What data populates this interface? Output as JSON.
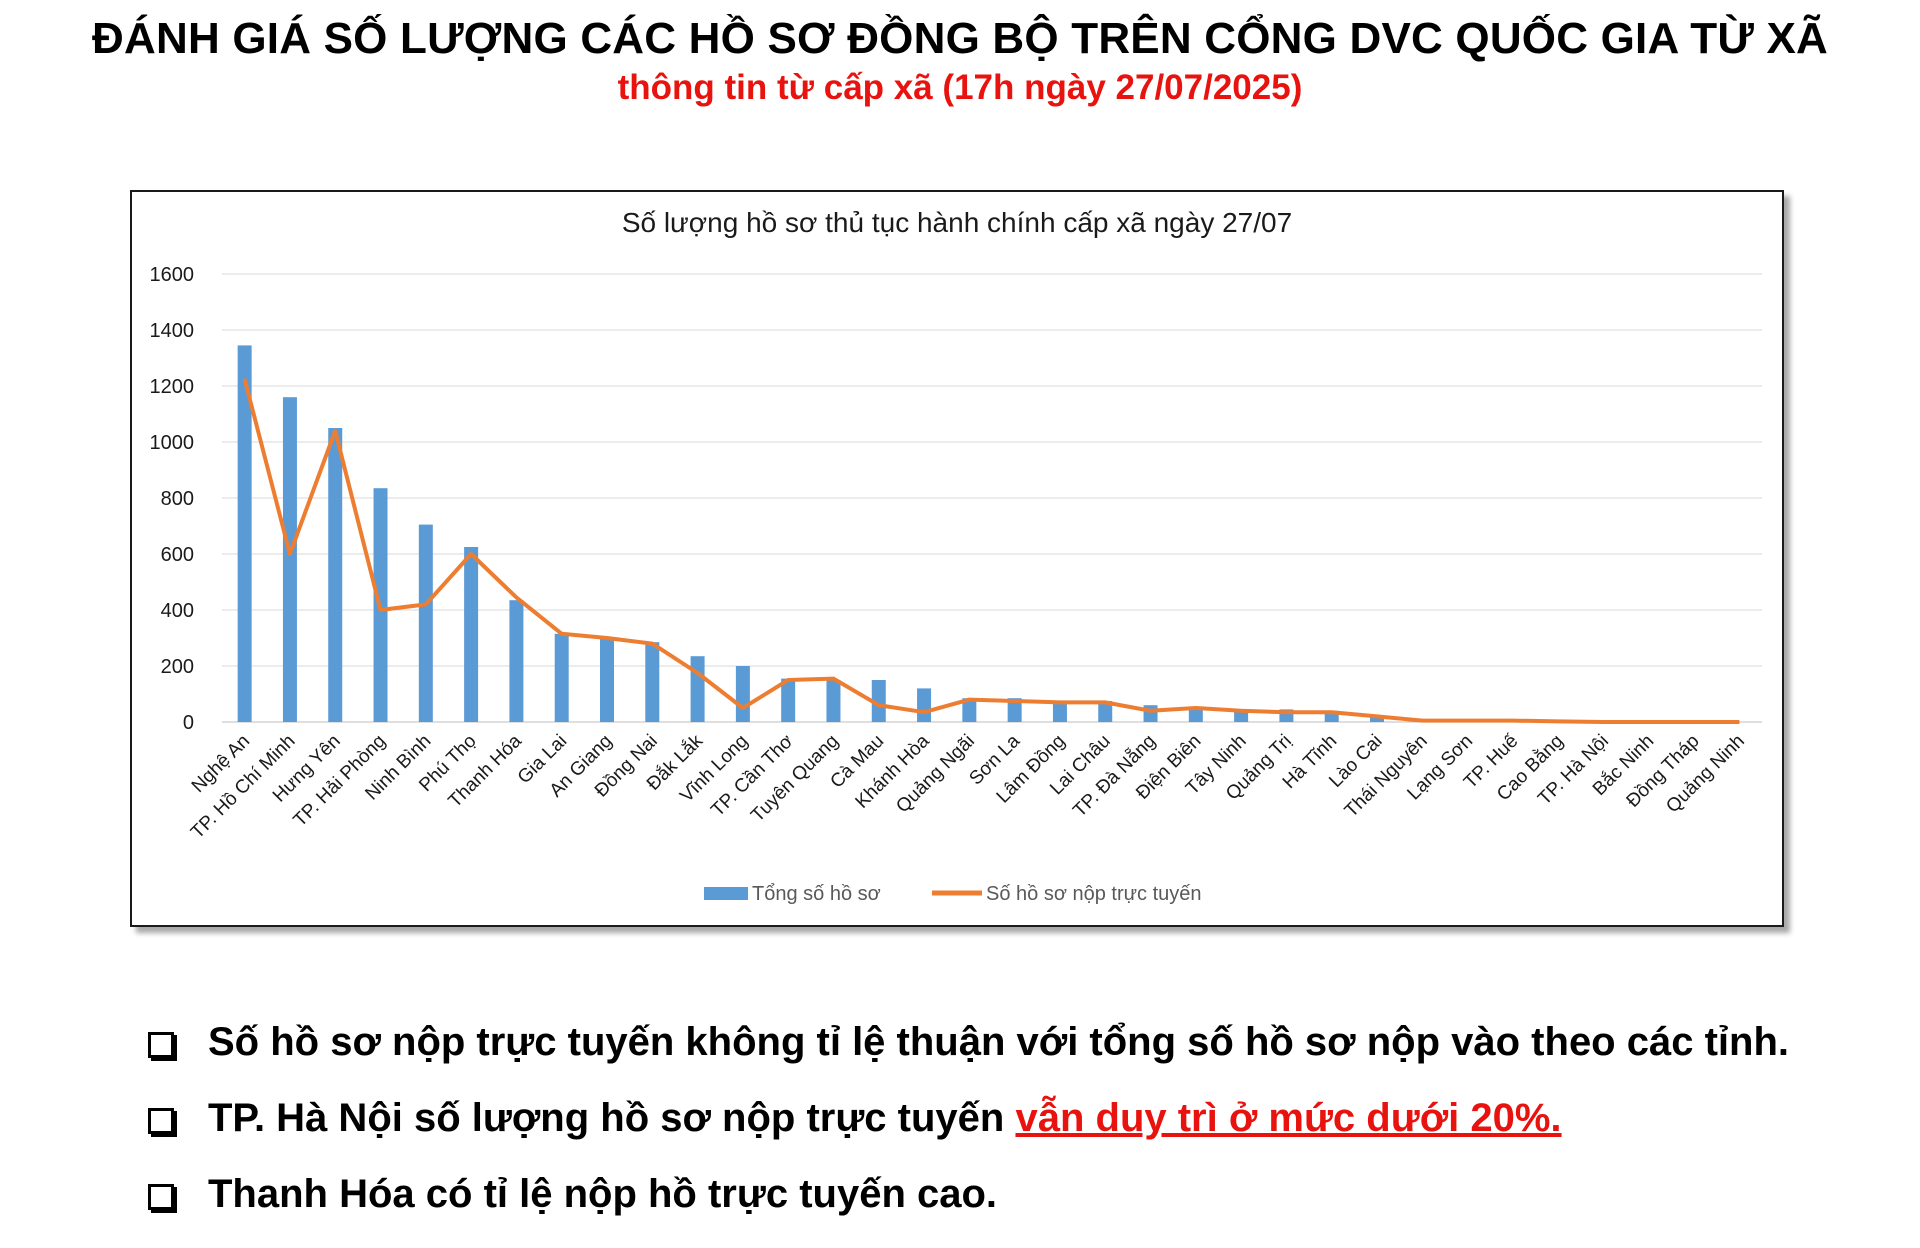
{
  "header": {
    "title": "ĐÁNH GIÁ SỐ LƯỢNG CÁC HỒ SƠ ĐỒNG BỘ TRÊN CỔNG DVC QUỐC GIA TỪ XÃ",
    "subtitle": "thông tin từ cấp xã (17h ngày 27/07/2025)"
  },
  "colors": {
    "bar": "#5b9bd5",
    "line": "#ed7d31",
    "highlight": "#e8130e"
  },
  "chart_data": {
    "type": "bar",
    "title": "Số lượng hồ sơ thủ tục hành chính cấp xã ngày 27/07",
    "xlabel": "",
    "ylabel": "",
    "ylim": [
      0,
      1600
    ],
    "yticks": [
      "0",
      "200",
      "400",
      "600",
      "800",
      "1000",
      "1200",
      "1400",
      "1600"
    ],
    "grid": true,
    "legend_position": "bottom",
    "categories": [
      "Nghệ An",
      "TP. Hồ Chí Minh",
      "Hưng Yên",
      "TP. Hải Phòng",
      "Ninh Bình",
      "Phú Thọ",
      "Thanh Hóa",
      "Gia Lai",
      "An Giang",
      "Đồng Nai",
      "Đắk Lắk",
      "Vĩnh Long",
      "TP. Cần Thơ",
      "Tuyên Quang",
      "Cà Mau",
      "Khánh Hòa",
      "Quảng Ngãi",
      "Sơn La",
      "Lâm Đồng",
      "Lai Châu",
      "TP. Đà Nẵng",
      "Điện Biên",
      "Tây Ninh",
      "Quảng Trị",
      "Hà Tĩnh",
      "Lào Cai",
      "Thái Nguyên",
      "Lạng Sơn",
      "TP. Huế",
      "Cao Bằng",
      "TP. Hà Nội",
      "Bắc Ninh",
      "Đồng Tháp",
      "Quảng Ninh"
    ],
    "series": [
      {
        "name": "Tổng số hồ sơ",
        "kind": "bar",
        "values": [
          1345,
          1160,
          1050,
          835,
          705,
          625,
          435,
          315,
          300,
          285,
          235,
          200,
          155,
          150,
          150,
          120,
          85,
          85,
          75,
          75,
          60,
          55,
          45,
          45,
          40,
          20,
          10,
          10,
          5,
          3,
          2,
          1,
          1,
          0
        ]
      },
      {
        "name": "Số hồ sơ nộp trực tuyến",
        "kind": "line",
        "values": [
          1225,
          600,
          1040,
          400,
          420,
          600,
          445,
          315,
          300,
          280,
          175,
          50,
          150,
          155,
          60,
          35,
          80,
          75,
          70,
          70,
          40,
          50,
          40,
          35,
          35,
          20,
          5,
          5,
          5,
          2,
          0,
          0,
          0,
          0
        ]
      }
    ]
  },
  "bullets": [
    {
      "text": "Số hồ sơ nộp trực tuyến không tỉ lệ thuận với tổng số hồ sơ nộp vào theo các tỉnh.",
      "highlight": ""
    },
    {
      "text": "TP. Hà Nội số lượng hồ sơ nộp trực tuyến ",
      "highlight": "vẫn duy trì ở mức dưới 20%."
    },
    {
      "text": "Thanh Hóa có tỉ lệ nộp hồ trực tuyến cao.",
      "highlight": ""
    }
  ]
}
